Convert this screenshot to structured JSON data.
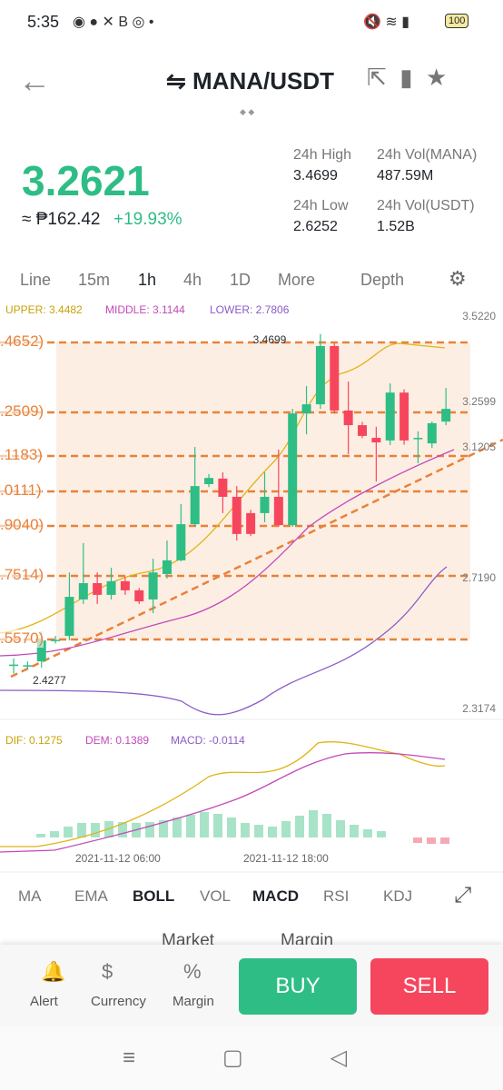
{
  "status": {
    "time": "5:35",
    "battery": "100"
  },
  "header": {
    "title": "MANA/USDT"
  },
  "price": {
    "last": "3.2621",
    "fiat": "≈ ₱162.42",
    "change": "+19.93%"
  },
  "stats": [
    {
      "label": "24h High",
      "value": "3.4699"
    },
    {
      "label": "24h Vol(MANA)",
      "value": "487.59M"
    },
    {
      "label": "24h Low",
      "value": "2.6252"
    },
    {
      "label": "24h Vol(USDT)",
      "value": "1.52B"
    }
  ],
  "intervals": [
    "Line",
    "15m",
    "1h",
    "4h",
    "1D",
    "More",
    "Depth"
  ],
  "boll": {
    "upper": "UPPER: 3.4482",
    "middle": "MIDDLE: 3.1144",
    "lower": "LOWER: 2.7806"
  },
  "levels": [
    ".4652)",
    ".2509)",
    ".1183)",
    ".0111)",
    ".9040)",
    ".7514)",
    ".5570)"
  ],
  "chart": {
    "type": "candlestick",
    "ylim": [
      2.3174,
      3.522
    ],
    "yticks": [
      {
        "value": 3.522,
        "label": "3.5220"
      },
      3.2599,
      3.1205,
      {
        "value": 2.719,
        "label": "2.7190"
      },
      2.3174
    ],
    "high_label": "3.4699",
    "low_label": "2.4277",
    "up_color": "#2ebd85",
    "down_color": "#f6465d",
    "candles": [
      {
        "o": 2.451,
        "h": 2.474,
        "l": 2.4277,
        "c": 2.455
      },
      {
        "o": 2.451,
        "h": 2.465,
        "l": 2.44,
        "c": 2.453
      },
      {
        "o": 2.465,
        "h": 2.557,
        "l": 2.446,
        "c": 2.529
      },
      {
        "o": 2.529,
        "h": 2.543,
        "l": 2.52,
        "c": 2.531
      },
      {
        "o": 2.543,
        "h": 2.738,
        "l": 2.529,
        "c": 2.663
      },
      {
        "o": 2.655,
        "h": 2.828,
        "l": 2.641,
        "c": 2.705
      },
      {
        "o": 2.705,
        "h": 2.738,
        "l": 2.641,
        "c": 2.669
      },
      {
        "o": 2.669,
        "h": 2.752,
        "l": 2.655,
        "c": 2.711
      },
      {
        "o": 2.711,
        "h": 2.724,
        "l": 2.669,
        "c": 2.683
      },
      {
        "o": 2.683,
        "h": 2.69,
        "l": 2.641,
        "c": 2.649
      },
      {
        "o": 2.655,
        "h": 2.78,
        "l": 2.613,
        "c": 2.738
      },
      {
        "o": 2.733,
        "h": 2.836,
        "l": 2.719,
        "c": 2.775
      },
      {
        "o": 2.775,
        "h": 2.948,
        "l": 2.772,
        "c": 2.886
      },
      {
        "o": 2.886,
        "h": 3.123,
        "l": 2.878,
        "c": 3.003
      },
      {
        "o": 3.009,
        "h": 3.04,
        "l": 3.0,
        "c": 3.028
      },
      {
        "o": 3.026,
        "h": 3.045,
        "l": 2.92,
        "c": 2.97
      },
      {
        "o": 2.97,
        "h": 3.003,
        "l": 2.836,
        "c": 2.856
      },
      {
        "o": 2.92,
        "h": 2.93,
        "l": 2.85,
        "c": 2.856
      },
      {
        "o": 2.92,
        "h": 3.045,
        "l": 2.892,
        "c": 2.97
      },
      {
        "o": 2.97,
        "h": 3.115,
        "l": 2.878,
        "c": 2.883
      },
      {
        "o": 2.883,
        "h": 3.24,
        "l": 2.878,
        "c": 3.226
      },
      {
        "o": 3.226,
        "h": 3.31,
        "l": 3.162,
        "c": 3.254
      },
      {
        "o": 3.254,
        "h": 3.4699,
        "l": 3.24,
        "c": 3.433
      },
      {
        "o": 3.433,
        "h": 3.442,
        "l": 3.226,
        "c": 3.235
      },
      {
        "o": 3.235,
        "h": 3.324,
        "l": 3.101,
        "c": 3.19
      },
      {
        "o": 3.19,
        "h": 3.2,
        "l": 3.15,
        "c": 3.157
      },
      {
        "o": 3.151,
        "h": 3.185,
        "l": 3.017,
        "c": 3.137
      },
      {
        "o": 3.143,
        "h": 3.318,
        "l": 3.129,
        "c": 3.29
      },
      {
        "o": 3.29,
        "h": 3.3,
        "l": 3.13,
        "c": 3.143
      },
      {
        "o": 3.148,
        "h": 3.171,
        "l": 3.073,
        "c": 3.151
      },
      {
        "o": 3.134,
        "h": 3.201,
        "l": 3.12,
        "c": 3.196
      },
      {
        "o": 3.201,
        "h": 3.304,
        "l": 3.19,
        "c": 3.24
      }
    ]
  },
  "macd": {
    "dif": "DIF: 0.1275",
    "dem": "DEM: 0.1389",
    "macd": "MACD: -0.0114"
  },
  "dates": [
    "2021-11-12 06:00",
    "2021-11-12 18:00"
  ],
  "indicators": [
    "MA",
    "EMA",
    "BOLL",
    "VOL",
    "MACD",
    "RSI",
    "KDJ"
  ],
  "tabs": [
    "Market",
    "Margin"
  ],
  "actions": [
    "Alert",
    "Currency",
    "Margin"
  ],
  "buttons": {
    "buy": "BUY",
    "sell": "SELL"
  }
}
